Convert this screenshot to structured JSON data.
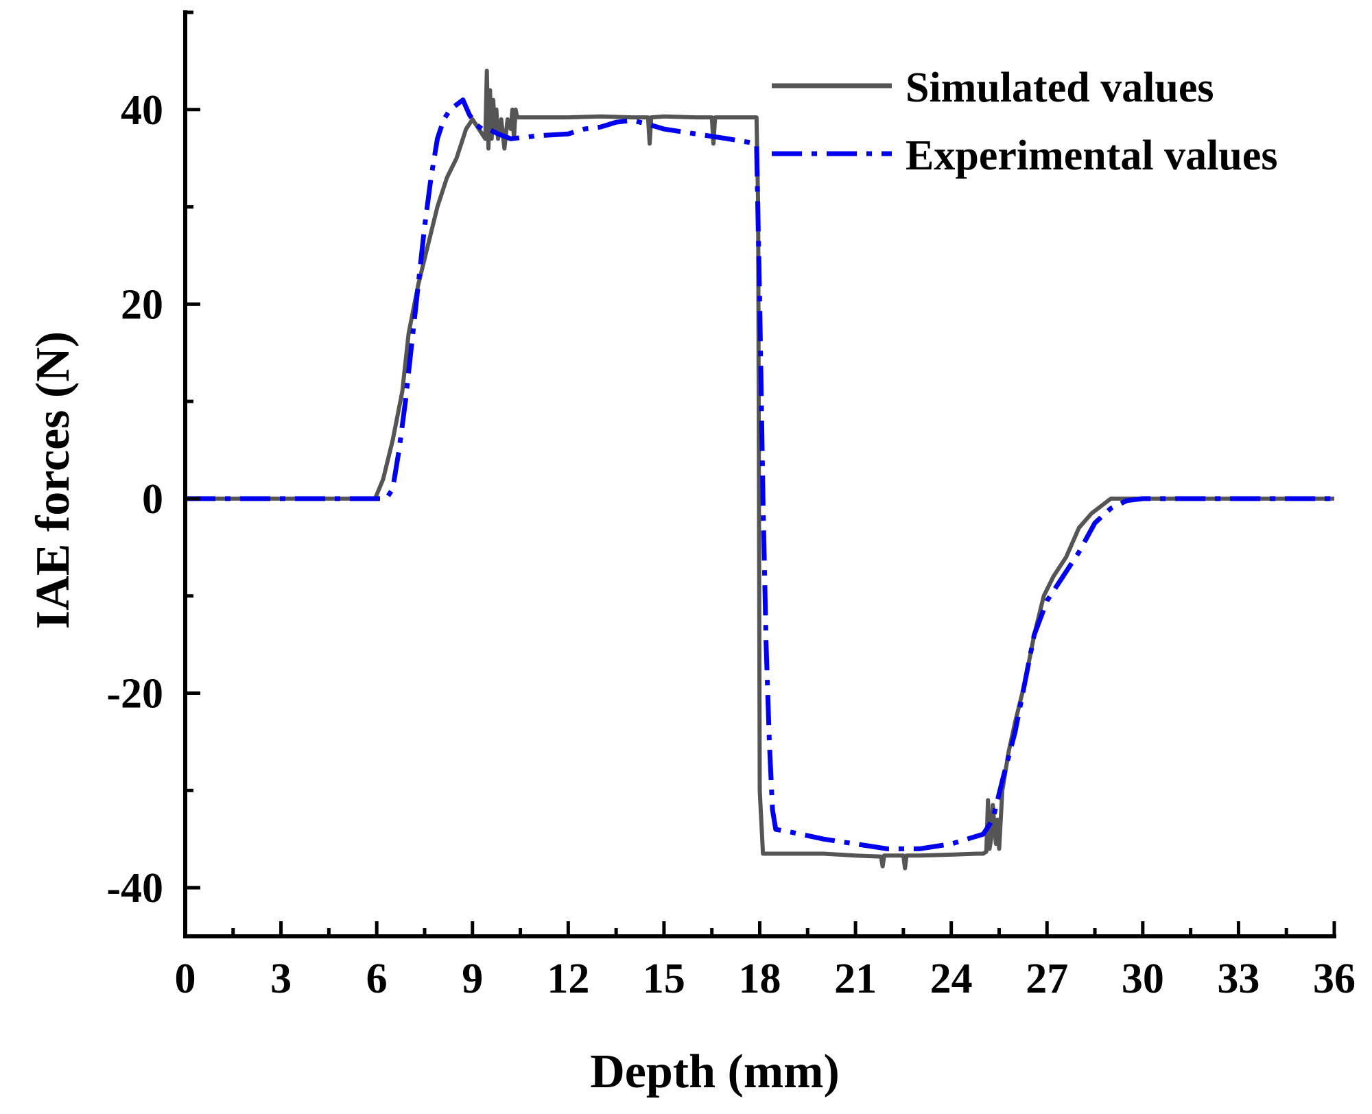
{
  "chart_data": {
    "type": "line",
    "title": "",
    "xlabel": "Depth (mm)",
    "ylabel": "IAE forces (N)",
    "xlim": [
      0,
      36
    ],
    "ylim": [
      -45,
      50
    ],
    "x_ticks": [
      0,
      3,
      6,
      9,
      12,
      15,
      18,
      21,
      24,
      27,
      30,
      33,
      36
    ],
    "y_ticks": [
      -40,
      -20,
      0,
      20,
      40
    ],
    "x_tick_labels": [
      "0",
      "3",
      "6",
      "9",
      "12",
      "15",
      "18",
      "21",
      "24",
      "27",
      "30",
      "33",
      "36"
    ],
    "y_tick_labels": [
      "-40",
      "-20",
      "0",
      "20",
      "40"
    ],
    "grid": false,
    "legend_position": "top-right",
    "colors": {
      "simulated": "#555555",
      "experimental": "#0000ee",
      "axis": "#000000"
    },
    "series": [
      {
        "name": "Simulated values",
        "style": "solid",
        "x": [
          0,
          5.95,
          6.2,
          6.5,
          6.8,
          7.0,
          7.3,
          7.6,
          7.9,
          8.2,
          8.5,
          8.8,
          9.0,
          9.4,
          9.45,
          9.5,
          9.55,
          9.6,
          9.65,
          9.7,
          9.75,
          9.8,
          9.9,
          10.0,
          10.1,
          10.2,
          10.25,
          10.3,
          10.35,
          10.4,
          11,
          12,
          13,
          14,
          14.5,
          14.55,
          14.6,
          15,
          16,
          16.5,
          16.55,
          16.6,
          17.0,
          17.9,
          17.95,
          18.0,
          18.1,
          19,
          20,
          21,
          21.8,
          21.85,
          21.9,
          22,
          22.5,
          22.55,
          22.6,
          23,
          24,
          24.8,
          25.0,
          25.1,
          25.15,
          25.2,
          25.25,
          25.3,
          25.4,
          25.45,
          25.5,
          25.6,
          25.8,
          26.0,
          26.3,
          26.6,
          26.9,
          27.2,
          27.6,
          28.0,
          28.4,
          28.8,
          29.0,
          29.3,
          29.6,
          30,
          33,
          36
        ],
        "y": [
          0,
          0,
          2,
          6,
          11,
          17,
          22,
          26,
          30,
          33,
          35,
          38,
          39,
          37,
          44,
          36,
          42,
          37,
          41,
          38,
          40,
          37,
          39,
          36,
          39,
          38,
          40,
          37,
          40,
          39.2,
          39.2,
          39.2,
          39.3,
          39.2,
          39.2,
          36.5,
          39.2,
          39.3,
          39.2,
          39.2,
          36.5,
          39.2,
          39.2,
          39.2,
          30,
          -30,
          -36.5,
          -36.5,
          -36.5,
          -36.7,
          -36.8,
          -37.8,
          -36.7,
          -36.7,
          -36.7,
          -38.0,
          -36.7,
          -36.7,
          -36.6,
          -36.5,
          -36.5,
          -36.3,
          -31,
          -36,
          -35,
          -31.5,
          -35.5,
          -33,
          -36,
          -30,
          -26,
          -23,
          -19,
          -14,
          -10,
          -8,
          -6,
          -3,
          -1.5,
          -0.5,
          0,
          0,
          0,
          0,
          0,
          0
        ]
      },
      {
        "name": "Experimental values",
        "style": "dashdot",
        "x": [
          0,
          6.3,
          6.5,
          6.7,
          6.9,
          7.1,
          7.3,
          7.5,
          7.7,
          7.9,
          8.1,
          8.3,
          8.5,
          8.7,
          8.9,
          9.1,
          9.3,
          9.5,
          9.8,
          10.2,
          11,
          12,
          12.5,
          13,
          13.5,
          14,
          14.5,
          15,
          16,
          17,
          17.9,
          18.0,
          18.1,
          18.2,
          18.3,
          18.4,
          18.5,
          19,
          20,
          21,
          22,
          23,
          24,
          24.5,
          25.0,
          25.3,
          25.6,
          26.0,
          26.3,
          26.6,
          27,
          27.5,
          28,
          28.5,
          29,
          29.5,
          30,
          33,
          36
        ],
        "y": [
          0,
          0,
          1,
          5,
          10,
          16,
          22,
          28,
          33,
          37,
          39,
          40,
          40.5,
          41,
          39.5,
          38.5,
          38,
          38,
          37.5,
          37,
          37.3,
          37.5,
          38,
          38.2,
          38.7,
          38.9,
          38.5,
          38,
          37.5,
          37,
          36.5,
          20,
          0,
          -15,
          -25,
          -32,
          -34,
          -34.3,
          -35,
          -35.5,
          -36,
          -36,
          -35.5,
          -35,
          -34.5,
          -33,
          -29,
          -24,
          -19,
          -14,
          -10.5,
          -8,
          -5.5,
          -2.5,
          -1,
          -0.2,
          0,
          0,
          0
        ]
      }
    ]
  }
}
